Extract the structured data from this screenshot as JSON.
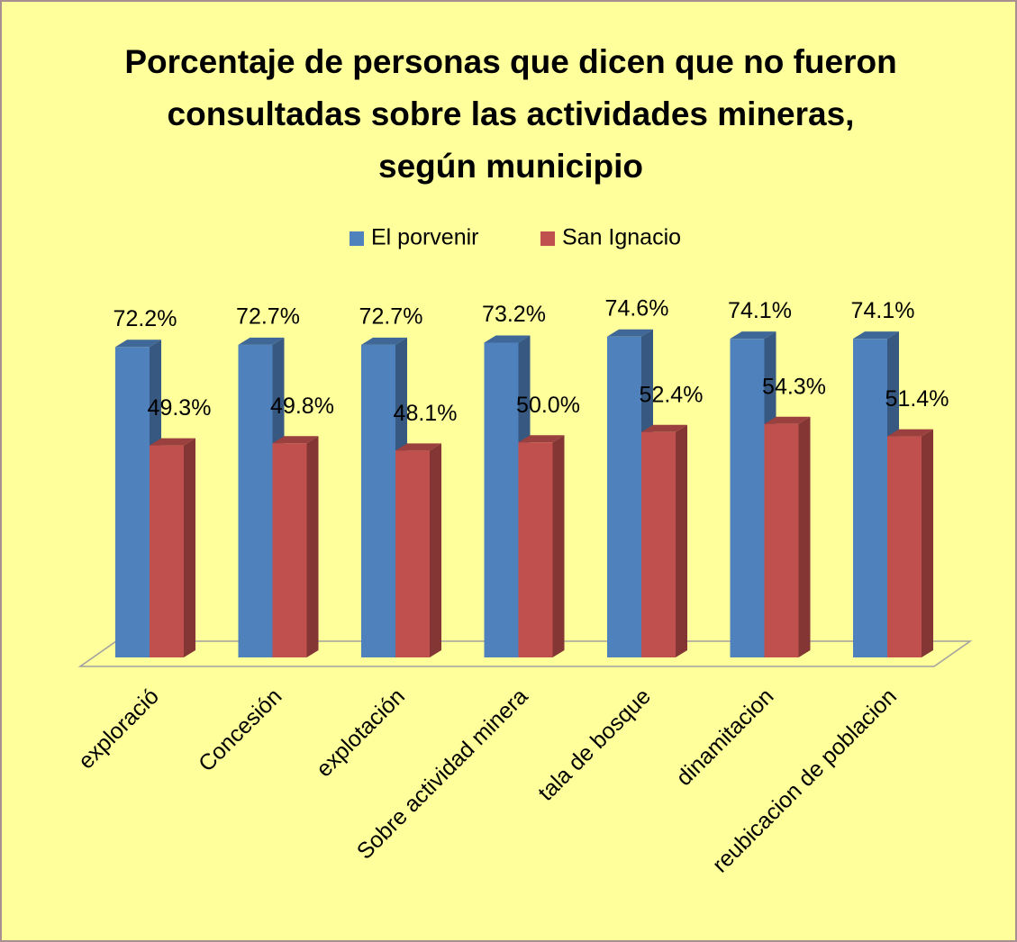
{
  "chart_data": {
    "type": "bar3d",
    "title": "Porcentaje de personas que dicen que no fueron consultadas sobre las actividades mineras, según municipio",
    "categories": [
      "exploració",
      "Concesión",
      "explotación",
      "Sobre actividad minera",
      "tala de bosque",
      "dinamitacion",
      "reubicacion de poblacion"
    ],
    "series": [
      {
        "name": "El porvenir",
        "color": "#4f81bd",
        "values": [
          72.2,
          72.7,
          72.7,
          73.2,
          74.6,
          74.1,
          74.1
        ],
        "value_labels": [
          "72.2%",
          "72.7%",
          "72.7%",
          "73.2%",
          "74.6%",
          "74.1%",
          "74.1%"
        ]
      },
      {
        "name": "San Ignacio",
        "color": "#c0504d",
        "values": [
          49.3,
          49.8,
          48.1,
          50.0,
          52.4,
          54.3,
          51.4
        ],
        "value_labels": [
          "49.3%",
          "49.8%",
          "48.1%",
          "50.0%",
          "52.4%",
          "54.3%",
          "51.4%"
        ]
      }
    ],
    "ylim": [
      0,
      80
    ],
    "legend": "top"
  }
}
